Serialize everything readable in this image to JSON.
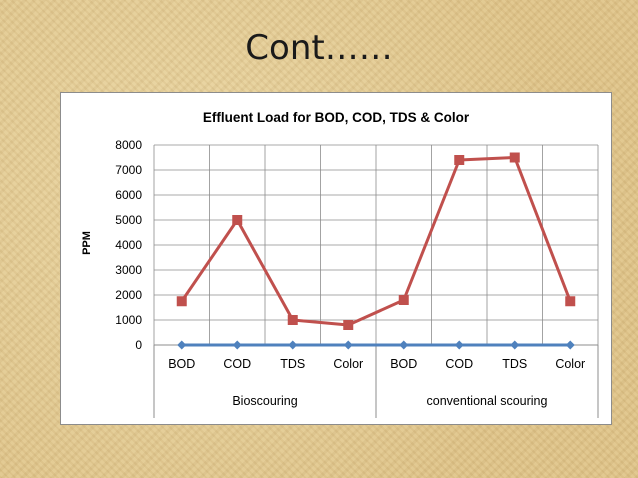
{
  "slide": {
    "title": "Cont……"
  },
  "chart_data": {
    "type": "line",
    "title": "Effluent Load for BOD, COD, TDS & Color",
    "xlabel": "",
    "ylabel": "PPM",
    "ylim": [
      0,
      8000
    ],
    "yticks": [
      0,
      1000,
      2000,
      3000,
      4000,
      5000,
      6000,
      7000,
      8000
    ],
    "grid": true,
    "legend": "none",
    "groups": [
      {
        "label": "Bioscouring",
        "categories": [
          "BOD",
          "COD",
          "TDS",
          "Color"
        ]
      },
      {
        "label": "conventional scouring",
        "categories": [
          "BOD",
          "COD",
          "TDS",
          "Color"
        ]
      }
    ],
    "categories": [
      "BOD",
      "COD",
      "TDS",
      "Color",
      "BOD",
      "COD",
      "TDS",
      "Color"
    ],
    "series": [
      {
        "color": "#4f81bd",
        "marker": "diamond",
        "values": [
          0,
          0,
          0,
          0,
          0,
          0,
          0,
          0
        ]
      },
      {
        "color": "#c0504d",
        "marker": "square",
        "values": [
          1750,
          5000,
          1000,
          800,
          1800,
          7400,
          7500,
          1750
        ]
      }
    ]
  }
}
